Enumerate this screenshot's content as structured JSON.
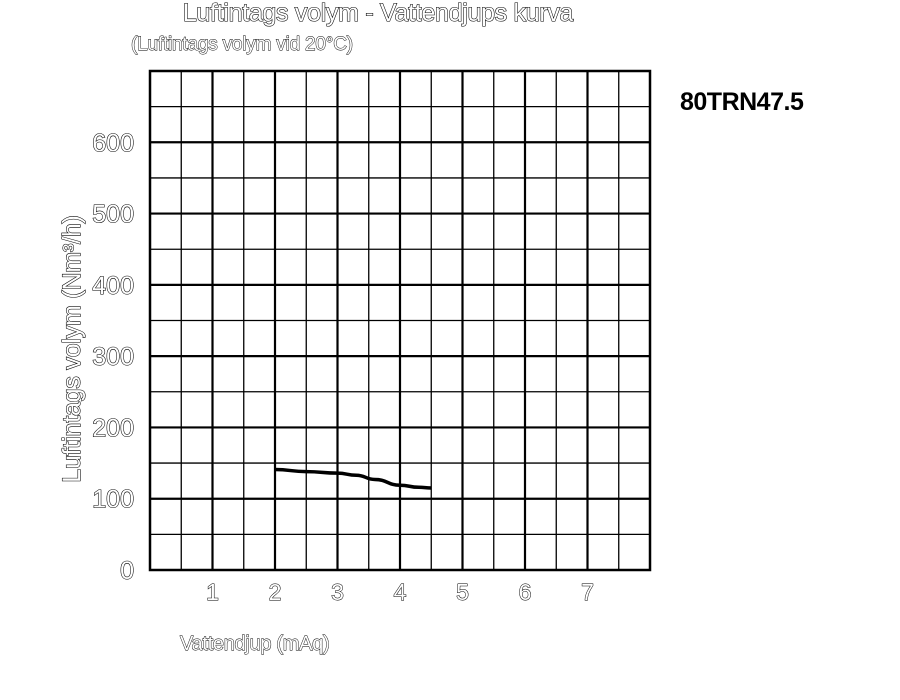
{
  "chart_data": {
    "type": "line",
    "title": "Luftintags volym - Vattendjups kurva",
    "subtitle": "(Luftintags volym vid 20°C)",
    "model": "80TRN47.5",
    "xlabel": "Vattendjup (mAq)",
    "ylabel": "Luftintags volym (Nm³/h)",
    "xlim": [
      0,
      8
    ],
    "ylim": [
      0,
      700
    ],
    "x_ticks": [
      1,
      2,
      3,
      4,
      5,
      6,
      7
    ],
    "y_ticks": [
      0,
      100,
      200,
      300,
      400,
      500,
      600
    ],
    "x_grid_step": 0.5,
    "y_grid_step": 50,
    "grid": true,
    "series": [
      {
        "x": [
          2.0,
          2.5,
          3.0,
          3.3,
          3.6,
          4.0,
          4.3,
          4.5
        ],
        "y": [
          141,
          138,
          136,
          133,
          127,
          119,
          116,
          115
        ]
      }
    ]
  }
}
